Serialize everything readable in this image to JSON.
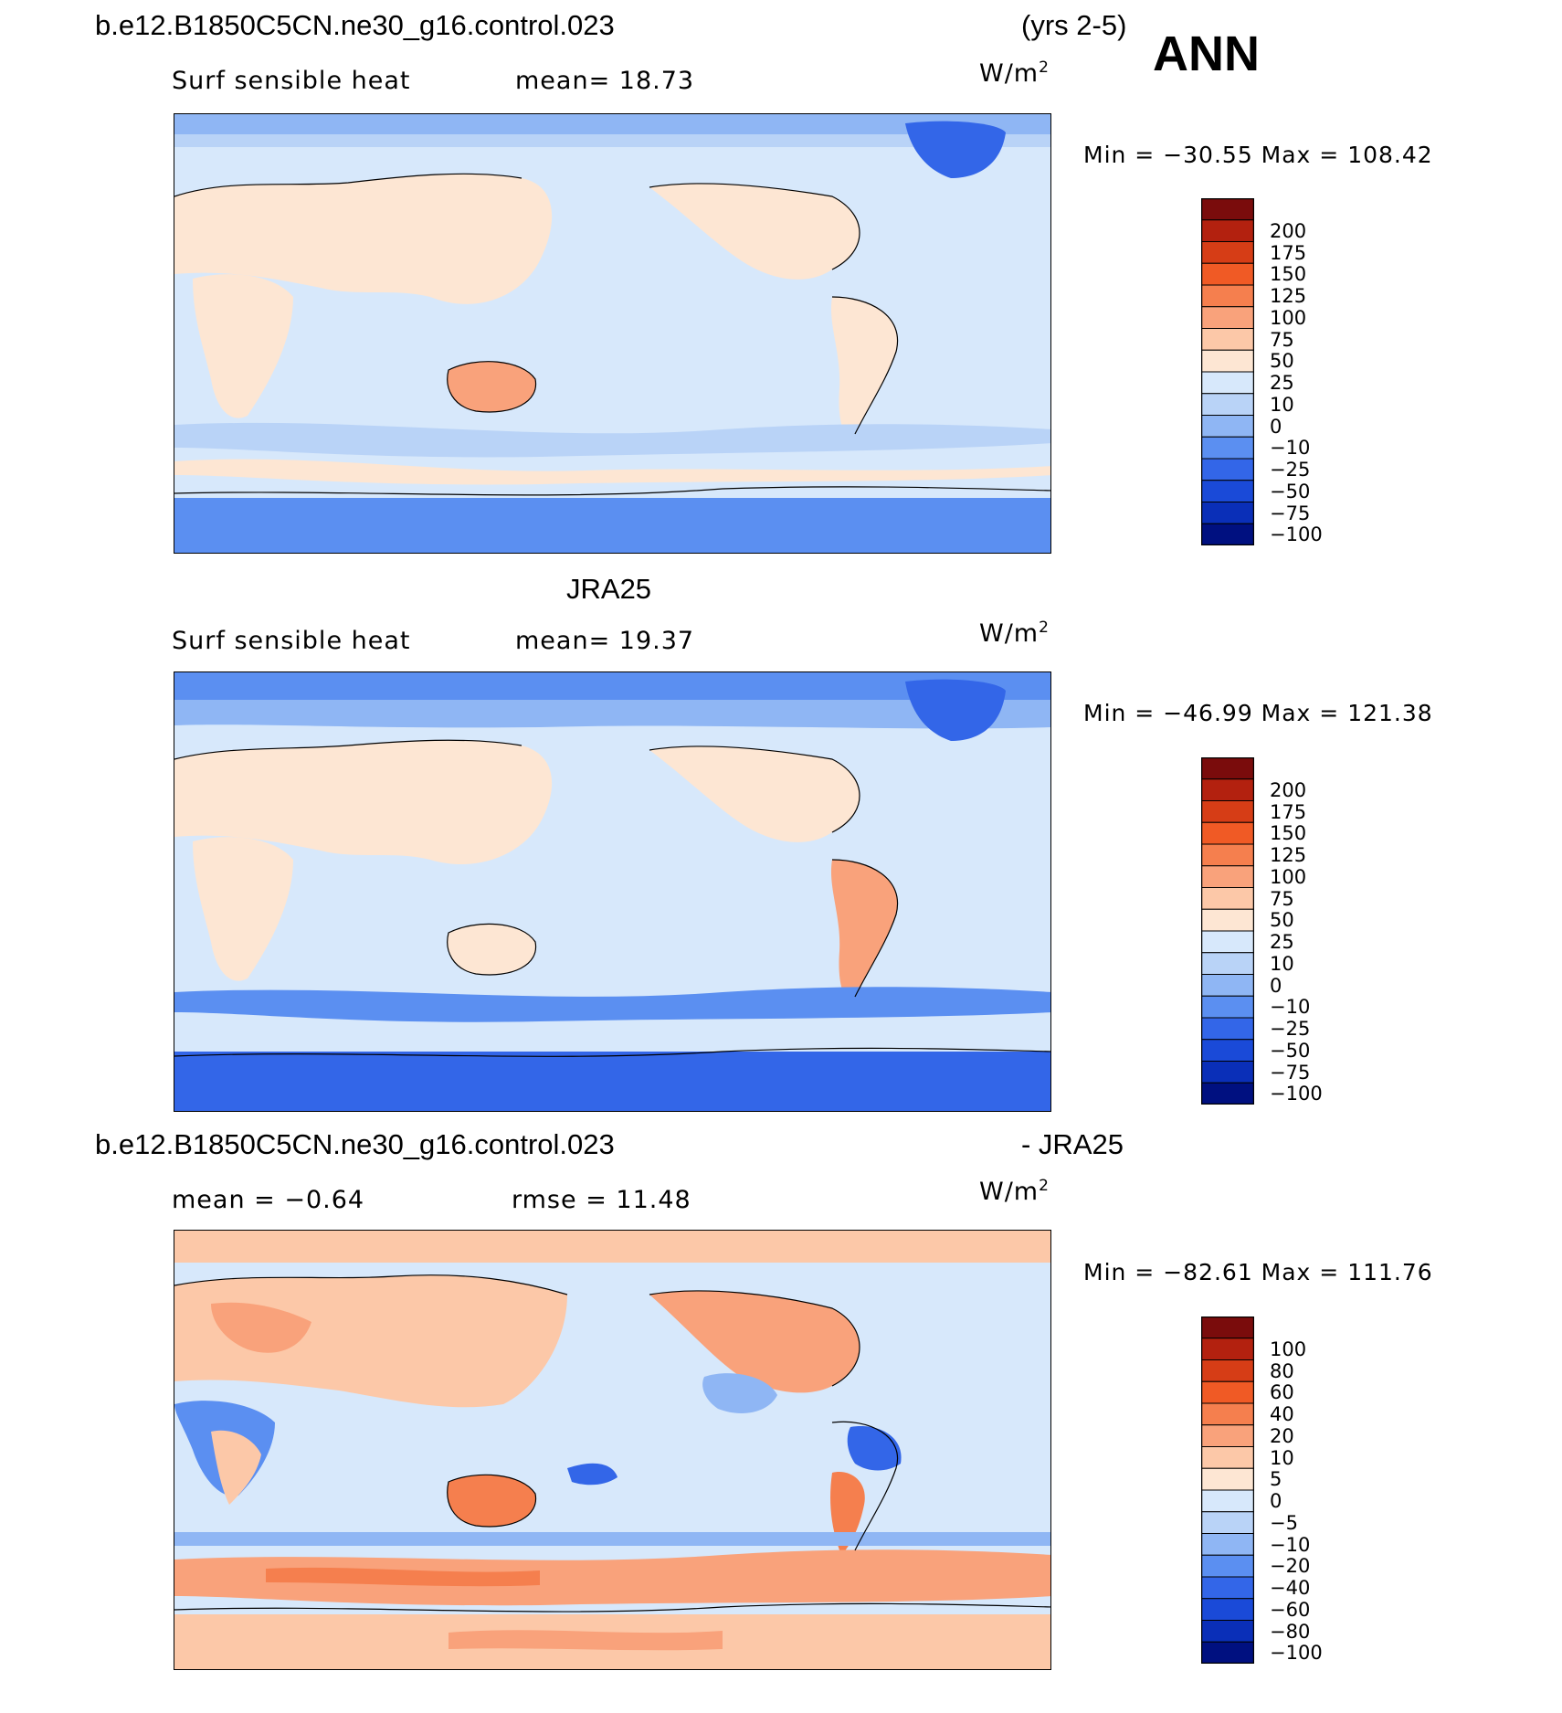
{
  "header": {
    "case_name": "b.e12.B1850C5CN.ne30_g16.control.023",
    "years": "(yrs 2-5)",
    "season": "ANN"
  },
  "panels": [
    {
      "title": "",
      "variable": "Surf sensible heat",
      "stat1": "mean=   18.73",
      "stat2": "",
      "units_base": "W/m",
      "units_exp": "2",
      "minmax": "Min = −30.55  Max = 108.42",
      "colorbar": {
        "labels": [
          "200",
          "175",
          "150",
          "125",
          "100",
          "75",
          "50",
          "25",
          "10",
          "0",
          "−10",
          "−25",
          "−50",
          "−75",
          "−100"
        ],
        "colors": [
          "#7a0c0c",
          "#b3210f",
          "#d63d16",
          "#f05a25",
          "#f57f4e",
          "#f9a27b",
          "#fcc8a8",
          "#fde6d3",
          "#d7e8fb",
          "#b9d3f7",
          "#8fb6f4",
          "#5b8ff1",
          "#3366e8",
          "#1a4ad8",
          "#0a2fb8",
          "#001080"
        ]
      }
    },
    {
      "title": "JRA25",
      "variable": "Surf sensible heat",
      "stat1": "mean=   19.37",
      "stat2": "",
      "units_base": "W/m",
      "units_exp": "2",
      "minmax": "Min = −46.99  Max = 121.38",
      "colorbar": {
        "labels": [
          "200",
          "175",
          "150",
          "125",
          "100",
          "75",
          "50",
          "25",
          "10",
          "0",
          "−10",
          "−25",
          "−50",
          "−75",
          "−100"
        ],
        "colors": [
          "#7a0c0c",
          "#b3210f",
          "#d63d16",
          "#f05a25",
          "#f57f4e",
          "#f9a27b",
          "#fcc8a8",
          "#fde6d3",
          "#d7e8fb",
          "#b9d3f7",
          "#8fb6f4",
          "#5b8ff1",
          "#3366e8",
          "#1a4ad8",
          "#0a2fb8",
          "#001080"
        ]
      }
    },
    {
      "title": "b.e12.B1850C5CN.ne30_g16.control.023",
      "title_suffix": "- JRA25",
      "variable": "",
      "stat1": "mean =   −0.64",
      "stat2": "rmse =   11.48",
      "units_base": "W/m",
      "units_exp": "2",
      "minmax": "Min = −82.61  Max = 111.76",
      "colorbar": {
        "labels": [
          "100",
          "80",
          "60",
          "40",
          "20",
          "10",
          "5",
          "0",
          "−5",
          "−10",
          "−20",
          "−40",
          "−60",
          "−80",
          "−100"
        ],
        "colors": [
          "#7a0c0c",
          "#b3210f",
          "#d63d16",
          "#f05a25",
          "#f57f4e",
          "#f9a27b",
          "#fcc8a8",
          "#fde6d3",
          "#d7e8fb",
          "#b9d3f7",
          "#8fb6f4",
          "#5b8ff1",
          "#3366e8",
          "#1a4ad8",
          "#0a2fb8",
          "#001080"
        ]
      }
    }
  ]
}
